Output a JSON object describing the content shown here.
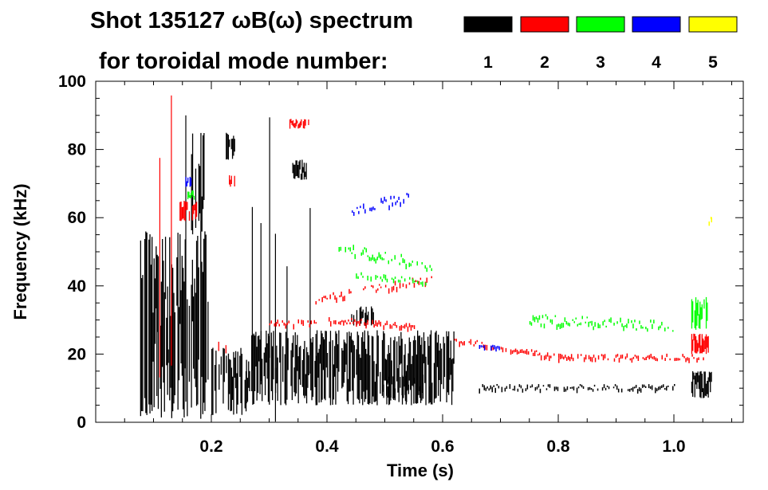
{
  "chart_data": {
    "type": "scatter",
    "title_line1": "Shot 135127 ωB(ω) spectrum",
    "title_line2": "for toroidal mode number:",
    "xlabel": "Time (s)",
    "ylabel": "Frequency (kHz)",
    "xlim": [
      0.0,
      1.12
    ],
    "ylim": [
      0,
      100
    ],
    "xticks": [
      {
        "value": 0.2,
        "label": "0.2"
      },
      {
        "value": 0.4,
        "label": "0.4"
      },
      {
        "value": 0.6,
        "label": "0.6"
      },
      {
        "value": 0.8,
        "label": "0.8"
      },
      {
        "value": 1.0,
        "label": "1.0"
      }
    ],
    "yticks": [
      {
        "value": 0,
        "label": "0"
      },
      {
        "value": 20,
        "label": "20"
      },
      {
        "value": 40,
        "label": "40"
      },
      {
        "value": 60,
        "label": "60"
      },
      {
        "value": 80,
        "label": "80"
      },
      {
        "value": 100,
        "label": "100"
      }
    ],
    "legend": [
      {
        "mode": "1",
        "color": "#000000"
      },
      {
        "mode": "2",
        "color": "#ff0000"
      },
      {
        "mode": "3",
        "color": "#00ff00"
      },
      {
        "mode": "4",
        "color": "#0000ff"
      },
      {
        "mode": "5",
        "color": "#ffff00"
      }
    ],
    "series": [
      {
        "name": "n=1",
        "color": "#000000",
        "regions": [
          {
            "x": [
              0.075,
              0.195
            ],
            "y": [
              1,
              56
            ],
            "density": 0.55
          },
          {
            "x": [
              0.165,
              0.19
            ],
            "y": [
              55,
              85
            ],
            "density": 0.35
          },
          {
            "x": [
              0.2,
              0.26
            ],
            "y": [
              2,
              22
            ],
            "density": 0.45
          },
          {
            "x": [
              0.225,
              0.24
            ],
            "y": [
              77,
              85
            ],
            "density": 0.7
          },
          {
            "x": [
              0.26,
              0.62
            ],
            "y": [
              5,
              27
            ],
            "density": 0.6
          },
          {
            "x": [
              0.34,
              0.365
            ],
            "y": [
              71,
              77
            ],
            "density": 0.7
          },
          {
            "x": [
              0.44,
              0.48
            ],
            "y": [
              28,
              34
            ],
            "density": 0.4
          },
          {
            "x": [
              0.49,
              0.58
            ],
            "y": [
              5,
              14
            ],
            "density": 0.25
          },
          {
            "x": [
              1.03,
              1.065
            ],
            "y": [
              7,
              15
            ],
            "density": 0.7
          }
        ],
        "lines": [
          {
            "x": [
              0.66,
              1.0
            ],
            "y": [
              10,
              10
            ],
            "jitter": 1.5
          }
        ],
        "streaks": [
          0.105,
          0.125,
          0.155,
          0.172,
          0.27,
          0.285,
          0.3,
          0.31,
          0.33,
          0.37,
          0.38
        ]
      },
      {
        "name": "n=2",
        "color": "#ff0000",
        "regions": [
          {
            "x": [
              0.335,
              0.37
            ],
            "y": [
              86,
              89
            ],
            "density": 0.6
          },
          {
            "x": [
              0.225,
              0.24
            ],
            "y": [
              69,
              73
            ],
            "density": 0.6
          },
          {
            "x": [
              0.145,
              0.175
            ],
            "y": [
              59,
              65
            ],
            "density": 0.5
          },
          {
            "x": [
              1.03,
              1.06
            ],
            "y": [
              20,
              26
            ],
            "density": 0.7
          },
          {
            "x": [
              0.21,
              0.225
            ],
            "y": [
              20,
              24
            ],
            "density": 0.4
          }
        ],
        "lines": [
          {
            "x": [
              0.3,
              0.38
            ],
            "y": [
              29,
              29
            ],
            "jitter": 1.5
          },
          {
            "x": [
              0.38,
              0.58
            ],
            "y": [
              36,
              42
            ],
            "jitter": 2.0
          },
          {
            "x": [
              0.4,
              0.55
            ],
            "y": [
              30,
              28
            ],
            "jitter": 1.5
          },
          {
            "x": [
              0.62,
              0.8
            ],
            "y": [
              24,
              19
            ],
            "jitter": 1.5
          },
          {
            "x": [
              0.8,
              1.05
            ],
            "y": [
              19,
              19
            ],
            "jitter": 1.5
          }
        ],
        "streaks": [
          0.11,
          0.13
        ]
      },
      {
        "name": "n=3",
        "color": "#00ff00",
        "regions": [
          {
            "x": [
              0.155,
              0.17
            ],
            "y": [
              65,
              68
            ],
            "density": 0.5
          },
          {
            "x": [
              1.03,
              1.06
            ],
            "y": [
              27,
              37
            ],
            "density": 0.45
          }
        ],
        "lines": [
          {
            "x": [
              0.42,
              0.58
            ],
            "y": [
              51,
              46
            ],
            "jitter": 3.0
          },
          {
            "x": [
              0.45,
              0.57
            ],
            "y": [
              43,
              41
            ],
            "jitter": 2.0
          },
          {
            "x": [
              0.75,
              1.0
            ],
            "y": [
              30,
              28
            ],
            "jitter": 3.0
          }
        ],
        "streaks": []
      },
      {
        "name": "n=4",
        "color": "#0000ff",
        "regions": [
          {
            "x": [
              0.155,
              0.165
            ],
            "y": [
              69,
              72
            ],
            "density": 0.5
          }
        ],
        "lines": [
          {
            "x": [
              0.44,
              0.54
            ],
            "y": [
              62,
              66
            ],
            "jitter": 3.0
          },
          {
            "x": [
              0.66,
              0.7
            ],
            "y": [
              22,
              22
            ],
            "jitter": 0.5
          }
        ],
        "streaks": []
      },
      {
        "name": "n=5",
        "color": "#ffff00",
        "regions": [],
        "lines": [
          {
            "x": [
              1.06,
              1.065
            ],
            "y": [
              58,
              60
            ],
            "jitter": 1.0
          }
        ],
        "streaks": []
      }
    ]
  }
}
